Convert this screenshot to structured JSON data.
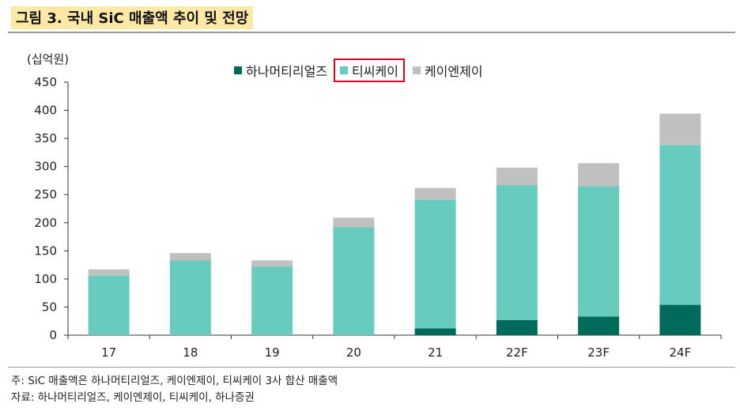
{
  "figure": {
    "title": "그림 3. 국내 SiC 매출액 추이 및 전망"
  },
  "chart_data": {
    "type": "bar",
    "stacked": true,
    "unit_label": "(십억원)",
    "categories": [
      "17",
      "18",
      "19",
      "20",
      "21",
      "22F",
      "23F",
      "24F"
    ],
    "series": [
      {
        "name": "하나머티리얼즈",
        "color": "#006b5a",
        "values": [
          0,
          0,
          0,
          0,
          12,
          27,
          33,
          54
        ]
      },
      {
        "name": "티씨케이",
        "color": "#67cbbe",
        "values": [
          106,
          133,
          122,
          192,
          229,
          240,
          232,
          284
        ],
        "highlighted": true
      },
      {
        "name": "케이엔제이",
        "color": "#c0c0c0",
        "values": [
          11,
          13,
          11,
          17,
          21,
          31,
          41,
          56
        ]
      }
    ],
    "ylim": [
      0,
      450
    ],
    "yticks": [
      0,
      50,
      100,
      150,
      200,
      250,
      300,
      350,
      400,
      450
    ],
    "grid": false,
    "legend_position": "top-center"
  },
  "notes": {
    "note": "주: SiC 매출액은 하나머티리얼즈, 케이엔제이, 티씨케이 3사 합산 매출액",
    "source": "자료: 하나머티리얼즈, 케이엔제이, 티씨케이, 하나증권"
  }
}
